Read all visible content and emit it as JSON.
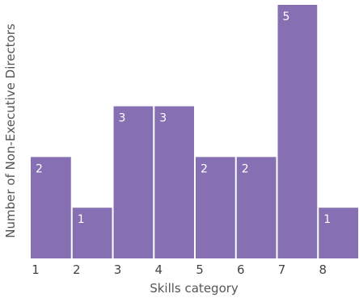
{
  "chart_data": {
    "type": "bar",
    "title": "",
    "xlabel": "Skills category",
    "ylabel": "Number of Non-Executive Directors",
    "x_ticks": [
      "1",
      "2",
      "3",
      "4",
      "5",
      "6",
      "7",
      "8"
    ],
    "values": [
      2,
      1,
      3,
      3,
      2,
      2,
      5,
      1
    ],
    "data_labels": [
      "2",
      "1",
      "3",
      "3",
      "2",
      "2",
      "5",
      "1"
    ],
    "ylim": [
      0,
      5
    ],
    "bar_color": "#8670b3",
    "grid": false,
    "legend": "none"
  }
}
